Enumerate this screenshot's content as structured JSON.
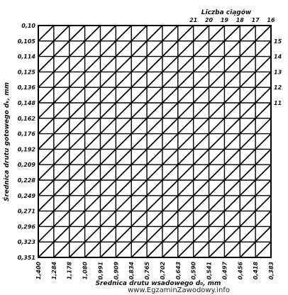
{
  "chart_data": {
    "type": "nomogram",
    "top_title": "Liczba ciągów",
    "xlabel": "Średnica drutu wsadowego d₀, mm",
    "ylabel": "Średnica drutu gotowego dₖ, mm",
    "x_ticks": [
      "1,400",
      "1,284",
      "1,178",
      "1,080",
      "0,991",
      "0,909",
      "0,834",
      "0,765",
      "0,702",
      "0,643",
      "0,590",
      "0,541",
      "0,497",
      "0,456",
      "0,418",
      "0,383"
    ],
    "y_ticks": [
      "0,10",
      "0,105",
      "0,114",
      "0,125",
      "0,136",
      "0,148",
      "0,162",
      "0,176",
      "0,192",
      "0,209",
      "0,228",
      "0,249",
      "0,271",
      "0,296",
      "0,323",
      "0,351"
    ],
    "top_ticks": [
      "21",
      "20",
      "19",
      "18",
      "17",
      "16"
    ],
    "right_ticks": [
      "15",
      "14",
      "13",
      "12",
      "11"
    ],
    "grid": true
  },
  "watermark": "www.EgzaminZawodowy.info"
}
